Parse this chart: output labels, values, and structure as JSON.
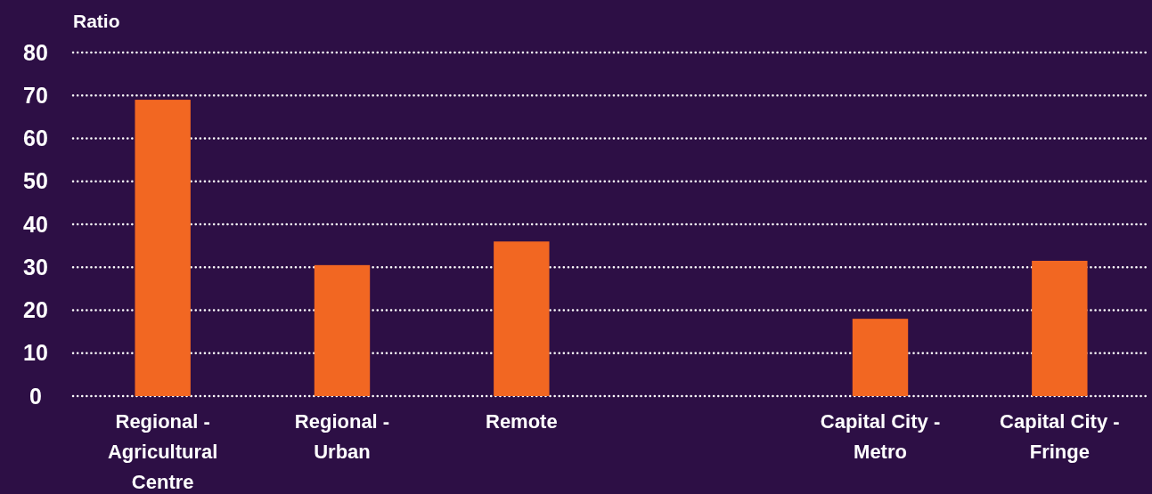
{
  "chart_data": {
    "type": "bar",
    "ylabel": "Ratio",
    "categories": [
      "Regional - Agricultural Centre",
      "Regional - Urban",
      "Remote",
      null,
      "Capital City - Metro",
      "Capital City - Fringe"
    ],
    "values": [
      69,
      30.5,
      36,
      null,
      18,
      31.5
    ],
    "color": "#f26722",
    "ylim": [
      0,
      80
    ],
    "yticks": [
      0,
      10,
      20,
      30,
      40,
      50,
      60,
      70,
      80
    ],
    "grid": "y"
  }
}
